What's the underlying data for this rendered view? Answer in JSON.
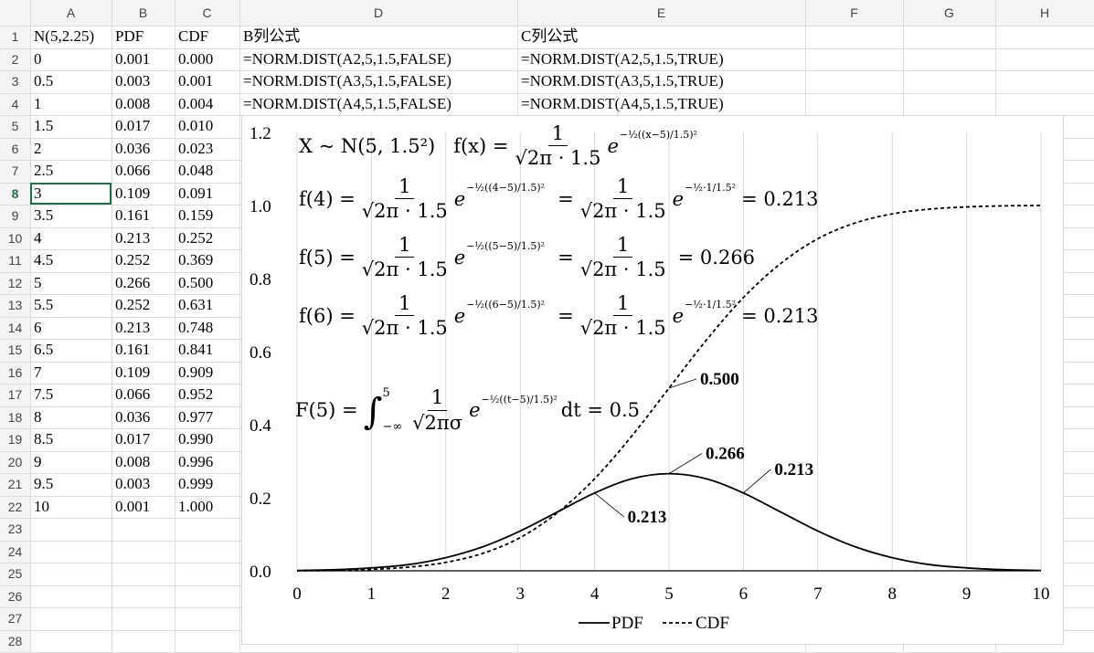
{
  "columns": [
    "A",
    "B",
    "C",
    "D",
    "E",
    "F",
    "G",
    "H"
  ],
  "rows": [
    "1",
    "2",
    "3",
    "4",
    "5",
    "6",
    "7",
    "8",
    "9",
    "10",
    "11",
    "12",
    "13",
    "14",
    "15",
    "16",
    "17",
    "18",
    "19",
    "20",
    "21",
    "22",
    "23",
    "24",
    "25",
    "26",
    "27",
    "28"
  ],
  "active_row": "8",
  "cells": {
    "headers": {
      "A1": "N(5,2.25)",
      "B1": "PDF",
      "C1": "CDF",
      "D1": "B列公式",
      "E1": "C列公式"
    },
    "A": [
      "0",
      "0.5",
      "1",
      "1.5",
      "2",
      "2.5",
      "3",
      "3.5",
      "4",
      "4.5",
      "5",
      "5.5",
      "6",
      "6.5",
      "7",
      "7.5",
      "8",
      "8.5",
      "9",
      "9.5",
      "10"
    ],
    "B": [
      "0.001",
      "0.003",
      "0.008",
      "0.017",
      "0.036",
      "0.066",
      "0.109",
      "0.161",
      "0.213",
      "0.252",
      "0.266",
      "0.252",
      "0.213",
      "0.161",
      "0.109",
      "0.066",
      "0.036",
      "0.017",
      "0.008",
      "0.003",
      "0.001"
    ],
    "C": [
      "0.000",
      "0.001",
      "0.004",
      "0.010",
      "0.023",
      "0.048",
      "0.091",
      "0.159",
      "0.252",
      "0.369",
      "0.500",
      "0.631",
      "0.748",
      "0.841",
      "0.909",
      "0.952",
      "0.977",
      "0.990",
      "0.996",
      "0.999",
      "1.000"
    ],
    "D": [
      "=NORM.DIST(A2,5,1.5,FALSE)",
      "=NORM.DIST(A3,5,1.5,FALSE)",
      "=NORM.DIST(A4,5,1.5,FALSE)"
    ],
    "E": [
      "=NORM.DIST(A2,5,1.5,TRUE)",
      "=NORM.DIST(A3,5,1.5,TRUE)",
      "=NORM.DIST(A4,5,1.5,TRUE)"
    ]
  },
  "chart_data": {
    "type": "line",
    "x": [
      0,
      0.5,
      1,
      1.5,
      2,
      2.5,
      3,
      3.5,
      4,
      4.5,
      5,
      5.5,
      6,
      6.5,
      7,
      7.5,
      8,
      8.5,
      9,
      9.5,
      10
    ],
    "series": [
      {
        "name": "PDF",
        "style": "solid",
        "values": [
          0.001,
          0.003,
          0.008,
          0.017,
          0.036,
          0.066,
          0.109,
          0.161,
          0.213,
          0.252,
          0.266,
          0.252,
          0.213,
          0.161,
          0.109,
          0.066,
          0.036,
          0.017,
          0.008,
          0.003,
          0.001
        ]
      },
      {
        "name": "CDF",
        "style": "dashed",
        "values": [
          0.0,
          0.001,
          0.004,
          0.01,
          0.023,
          0.048,
          0.091,
          0.159,
          0.252,
          0.369,
          0.5,
          0.631,
          0.748,
          0.841,
          0.909,
          0.952,
          0.977,
          0.99,
          0.996,
          0.999,
          1.0
        ]
      }
    ],
    "x_ticks": [
      "0",
      "1",
      "2",
      "3",
      "4",
      "5",
      "6",
      "7",
      "8",
      "9",
      "10"
    ],
    "y_ticks": [
      "0.0",
      "0.2",
      "0.4",
      "0.6",
      "0.8",
      "1.0",
      "1.2"
    ],
    "xlim": [
      0,
      10
    ],
    "ylim": [
      0,
      1.2
    ],
    "grid": "vertical",
    "legend": "bottom",
    "annotations": [
      {
        "text": "0.500",
        "x": 5,
        "y": 0.5
      },
      {
        "text": "0.266",
        "x": 5,
        "y": 0.266
      },
      {
        "text": "0.213",
        "x": 4,
        "y": 0.213
      },
      {
        "text": "0.213",
        "x": 6,
        "y": 0.213
      }
    ],
    "formulas": {
      "line1_lhs": "X ~ N(5, 1.5²)",
      "line1_f": "f(x) =",
      "line1_frac_num": "1",
      "line1_frac_den": "√2π · 1.5",
      "line1_exp": "−½((x−5)/1.5)²",
      "f4_lhs": "f(4) =",
      "f4_exp1": "−½((4−5)/1.5)²",
      "f4_exp2": "−½·1/1.5²",
      "f4_result": "= 0.213",
      "f5_lhs": "f(5) =",
      "f5_exp1": "−½((5−5)/1.5)²",
      "f5_result": "= 0.266",
      "f6_lhs": "f(6) =",
      "f6_exp1": "−½((6−5)/1.5)²",
      "f6_exp2": "−½·1/1.5²",
      "f6_result": "= 0.213",
      "F5_lhs": "F(5) =",
      "F5_upper": "5",
      "F5_lower": "−∞",
      "F5_den": "√2πσ",
      "F5_exp": "−½((t−5)/1.5)²",
      "F5_tail": "dt = 0.5",
      "equals": "=",
      "one": "1",
      "den": "√2π · 1.5",
      "e": "e"
    }
  }
}
